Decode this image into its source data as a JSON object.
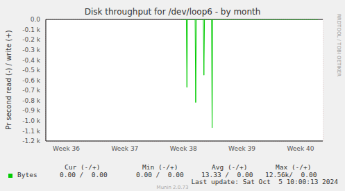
{
  "chart_data": {
    "type": "line",
    "title": "Disk throughput for /dev/loop6 - by month",
    "y_label": "Pr second read (-) / write (+)",
    "x": [
      37.95,
      38.05,
      38.06,
      38.07,
      38.2,
      38.21,
      38.22,
      38.34,
      38.35,
      38.36,
      38.48,
      38.49,
      38.5,
      40.3
    ],
    "series": [
      {
        "name": "Bytes",
        "color": "#00cc00",
        "values": [
          0,
          0,
          -670,
          0,
          0,
          -820,
          0,
          0,
          -550,
          0,
          0,
          -1070,
          0,
          0
        ]
      }
    ],
    "xlim": [
      35.65,
      40.38
    ],
    "xticks": [
      {
        "value": 36,
        "label": "Week 36"
      },
      {
        "value": 37,
        "label": "Week 37"
      },
      {
        "value": 38,
        "label": "Week 38"
      },
      {
        "value": 39,
        "label": "Week 39"
      },
      {
        "value": 40,
        "label": "Week 40"
      }
    ],
    "ylim": [
      -1200,
      0
    ],
    "yticks": [
      {
        "value": 0,
        "label": "0.0"
      },
      {
        "value": -100,
        "label": "-0.1 k"
      },
      {
        "value": -200,
        "label": "-0.2 k"
      },
      {
        "value": -300,
        "label": "-0.3 k"
      },
      {
        "value": -400,
        "label": "-0.4 k"
      },
      {
        "value": -500,
        "label": "-0.5 k"
      },
      {
        "value": -600,
        "label": "-0.6 k"
      },
      {
        "value": -700,
        "label": "-0.7 k"
      },
      {
        "value": -800,
        "label": "-0.8 k"
      },
      {
        "value": -900,
        "label": "-0.9 k"
      },
      {
        "value": -1000,
        "label": "-1.0 k"
      },
      {
        "value": -1100,
        "label": "-1.1 k"
      },
      {
        "value": -1200,
        "label": "-1.2 k"
      }
    ],
    "grid": true,
    "stats": {
      "headers": [
        "Cur (-/+)",
        "Min (-/+)",
        "Avg (-/+)",
        "Max (-/+)"
      ],
      "rows": [
        {
          "name": "Bytes",
          "cells": [
            "0.00 /  0.00",
            "0.00 /  0.00",
            "13.33 /  0.00",
            "12.56k/  0.00"
          ]
        }
      ]
    },
    "footer": "Last update: Sat Oct  5 10:00:13 2024",
    "credits": "Munin 2.0.73",
    "watermark": "RRDTOOL / TOBI OETIKER"
  }
}
